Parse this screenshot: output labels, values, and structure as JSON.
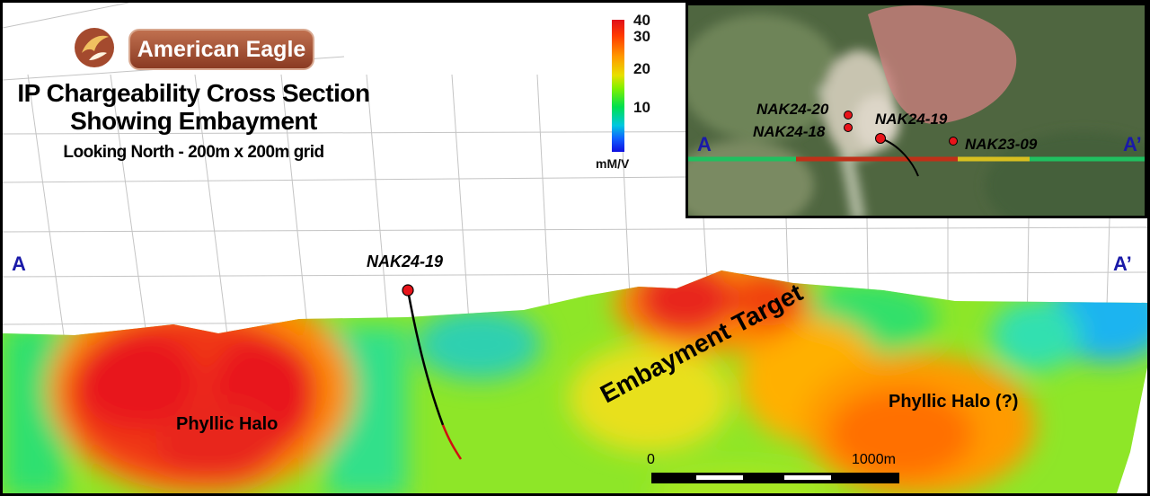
{
  "brand": {
    "name": "American Eagle",
    "logo_icon": "eagle-logo-icon"
  },
  "title": {
    "line1": "IP Chargeability Cross Section",
    "line2": "Showing Embayment",
    "subtitle": "Looking North - 200m x 200m grid"
  },
  "colorbar": {
    "ticks": [
      "40",
      "30",
      "20",
      "10"
    ],
    "unit": "mM/V"
  },
  "inset_map": {
    "left_label": "A",
    "right_label": "A’",
    "drillholes": [
      "NAK24-20",
      "NAK24-18",
      "NAK24-19",
      "NAK23-09"
    ]
  },
  "section": {
    "left_label": "A",
    "right_label": "A’",
    "drillhole": "NAK24-19",
    "zones": [
      "Phyllic Halo",
      "Embayment Target",
      "Phyllic Halo (?)"
    ]
  },
  "scale_bar": {
    "start": "0",
    "end": "1000m"
  },
  "colors": {
    "high": "#e8141a",
    "medium": "#ff8c00",
    "low": "#80e620",
    "very_low": "#1eb4f0",
    "brand": "#a44a2e",
    "section_letter": "#1a1aa8"
  }
}
